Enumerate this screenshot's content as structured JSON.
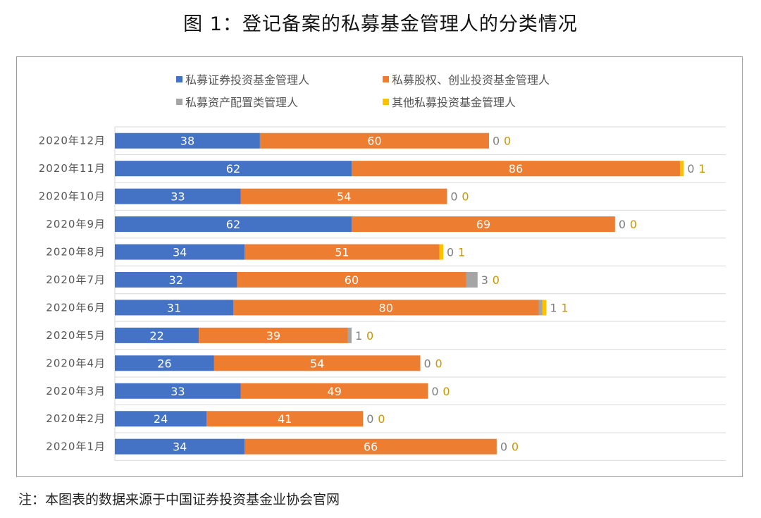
{
  "chart_data": {
    "type": "bar",
    "orientation": "horizontal",
    "stacked": true,
    "title": "图 1：登记备案的私募基金管理人的分类情况",
    "categories": [
      "2020年12月",
      "2020年11月",
      "2020年10月",
      "2020年9月",
      "2020年8月",
      "2020年7月",
      "2020年6月",
      "2020年5月",
      "2020年4月",
      "2020年3月",
      "2020年2月",
      "2020年1月"
    ],
    "series": [
      {
        "name": "私募证券投资基金管理人",
        "color": "#4472c4",
        "values": [
          38,
          62,
          33,
          62,
          34,
          32,
          31,
          22,
          26,
          33,
          24,
          34
        ]
      },
      {
        "name": "私募股权、创业投资基金管理人",
        "color": "#ed7d31",
        "values": [
          60,
          86,
          54,
          69,
          51,
          60,
          80,
          39,
          54,
          49,
          41,
          66
        ]
      },
      {
        "name": "私募资产配置类管理人",
        "color": "#a5a5a5",
        "values": [
          0,
          0,
          0,
          0,
          0,
          3,
          1,
          1,
          0,
          0,
          0,
          0
        ]
      },
      {
        "name": "其他私募投资基金管理人",
        "color": "#ffc000",
        "values": [
          0,
          1,
          0,
          0,
          1,
          0,
          1,
          0,
          0,
          0,
          0,
          0
        ]
      }
    ],
    "xlim": [
      0,
      160
    ],
    "grid": true,
    "legend": "top",
    "data_labels": true
  },
  "note": "注：本图表的数据来源于中国证券投资基金业协会官网"
}
